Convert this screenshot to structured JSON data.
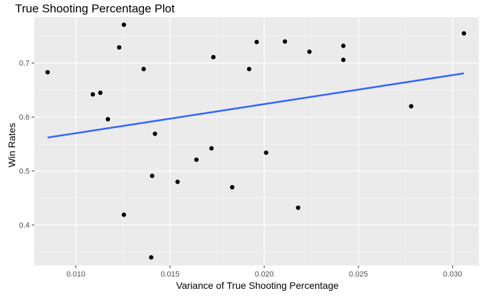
{
  "chart_data": {
    "type": "scatter",
    "title": "True Shooting Percentage Plot",
    "xlabel": "Variance of True Shooting Percentage",
    "ylabel": "Win Rates",
    "xlim": [
      0.0078,
      0.0314
    ],
    "ylim": [
      0.325,
      0.785
    ],
    "x_ticks": [
      0.01,
      0.015,
      0.02,
      0.025,
      0.03
    ],
    "x_tick_labels": [
      "0.010",
      "0.015",
      "0.020",
      "0.025",
      "0.030"
    ],
    "y_ticks": [
      0.4,
      0.5,
      0.6,
      0.7
    ],
    "y_tick_labels": [
      "0.4",
      "0.5",
      "0.6",
      "0.7"
    ],
    "grid": true,
    "panel_color": "#EBEBEB",
    "point_color": "#000000",
    "trend_color": "#3366FF",
    "points": [
      {
        "x": 0.0085,
        "y": 0.683
      },
      {
        "x": 0.0109,
        "y": 0.642
      },
      {
        "x": 0.0113,
        "y": 0.645
      },
      {
        "x": 0.0117,
        "y": 0.596
      },
      {
        "x": 0.0123,
        "y": 0.729
      },
      {
        "x": 0.01255,
        "y": 0.771
      },
      {
        "x": 0.01255,
        "y": 0.419
      },
      {
        "x": 0.0136,
        "y": 0.689
      },
      {
        "x": 0.014,
        "y": 0.34
      },
      {
        "x": 0.01405,
        "y": 0.491
      },
      {
        "x": 0.0142,
        "y": 0.569
      },
      {
        "x": 0.0154,
        "y": 0.48
      },
      {
        "x": 0.0164,
        "y": 0.521
      },
      {
        "x": 0.0172,
        "y": 0.542
      },
      {
        "x": 0.0173,
        "y": 0.711
      },
      {
        "x": 0.0183,
        "y": 0.47
      },
      {
        "x": 0.0192,
        "y": 0.689
      },
      {
        "x": 0.0196,
        "y": 0.739
      },
      {
        "x": 0.0201,
        "y": 0.534
      },
      {
        "x": 0.0211,
        "y": 0.74
      },
      {
        "x": 0.0218,
        "y": 0.432
      },
      {
        "x": 0.0224,
        "y": 0.721
      },
      {
        "x": 0.0242,
        "y": 0.732
      },
      {
        "x": 0.0242,
        "y": 0.706
      },
      {
        "x": 0.0278,
        "y": 0.62
      },
      {
        "x": 0.0306,
        "y": 0.755
      }
    ],
    "trend_line": [
      {
        "x": 0.0085,
        "y": 0.562
      },
      {
        "x": 0.0306,
        "y": 0.681
      }
    ]
  }
}
